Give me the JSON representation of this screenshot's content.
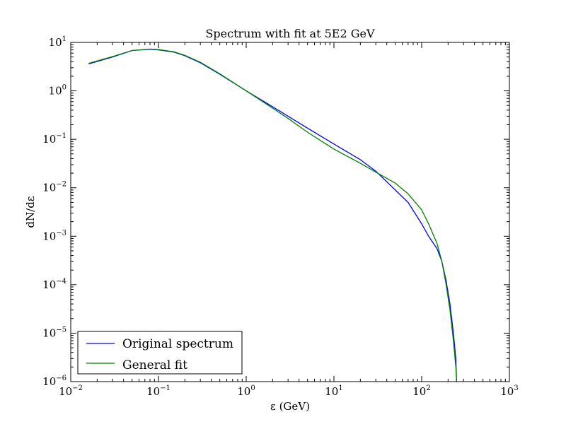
{
  "chart_data": {
    "type": "line",
    "title": "Spectrum with fit at 5E2 GeV",
    "xlabel": "ε (GeV)",
    "ylabel": "dN/dε",
    "xscale": "log",
    "yscale": "log",
    "xlim": [
      0.01,
      1000
    ],
    "ylim": [
      1e-06,
      10
    ],
    "x_ticks": [
      {
        "base": "10",
        "exp": "−2"
      },
      {
        "base": "10",
        "exp": "−1"
      },
      {
        "base": "10",
        "exp": "0"
      },
      {
        "base": "10",
        "exp": "1"
      },
      {
        "base": "10",
        "exp": "2"
      },
      {
        "base": "10",
        "exp": "3"
      }
    ],
    "y_ticks": [
      {
        "base": "10",
        "exp": "−6"
      },
      {
        "base": "10",
        "exp": "−5"
      },
      {
        "base": "10",
        "exp": "−4"
      },
      {
        "base": "10",
        "exp": "−3"
      },
      {
        "base": "10",
        "exp": "−2"
      },
      {
        "base": "10",
        "exp": "−1"
      },
      {
        "base": "10",
        "exp": "0"
      },
      {
        "base": "10",
        "exp": "1"
      }
    ],
    "legend_position": "bottom-left",
    "series": [
      {
        "name": "Original spectrum",
        "color": "#0000ff",
        "x": [
          0.016,
          0.03,
          0.05,
          0.08,
          0.1,
          0.15,
          0.2,
          0.3,
          0.5,
          1,
          2,
          3,
          5,
          10,
          20,
          30,
          50,
          70,
          100,
          120,
          150,
          170,
          190,
          210,
          230,
          245,
          250
        ],
        "y": [
          3.6,
          5.0,
          6.8,
          7.2,
          7.0,
          6.3,
          5.3,
          3.8,
          2.2,
          1.0,
          0.47,
          0.3,
          0.17,
          0.08,
          0.038,
          0.022,
          0.009,
          0.005,
          0.0018,
          0.001,
          0.00055,
          0.0003,
          0.00012,
          4e-05,
          1e-05,
          3e-06,
          1e-06
        ]
      },
      {
        "name": "General fit",
        "color": "#008000",
        "x": [
          0.016,
          0.03,
          0.05,
          0.08,
          0.1,
          0.15,
          0.2,
          0.3,
          0.5,
          1,
          2,
          3,
          5,
          10,
          20,
          30,
          50,
          70,
          100,
          120,
          150,
          170,
          190,
          210,
          230,
          245,
          250
        ],
        "y": [
          3.7,
          5.1,
          6.8,
          7.3,
          7.1,
          6.4,
          5.4,
          3.9,
          2.25,
          1.0,
          0.44,
          0.27,
          0.14,
          0.063,
          0.032,
          0.021,
          0.0125,
          0.0075,
          0.0035,
          0.0018,
          0.0007,
          0.0003,
          0.0001,
          3e-05,
          7e-06,
          2e-06,
          1e-06
        ]
      }
    ]
  }
}
